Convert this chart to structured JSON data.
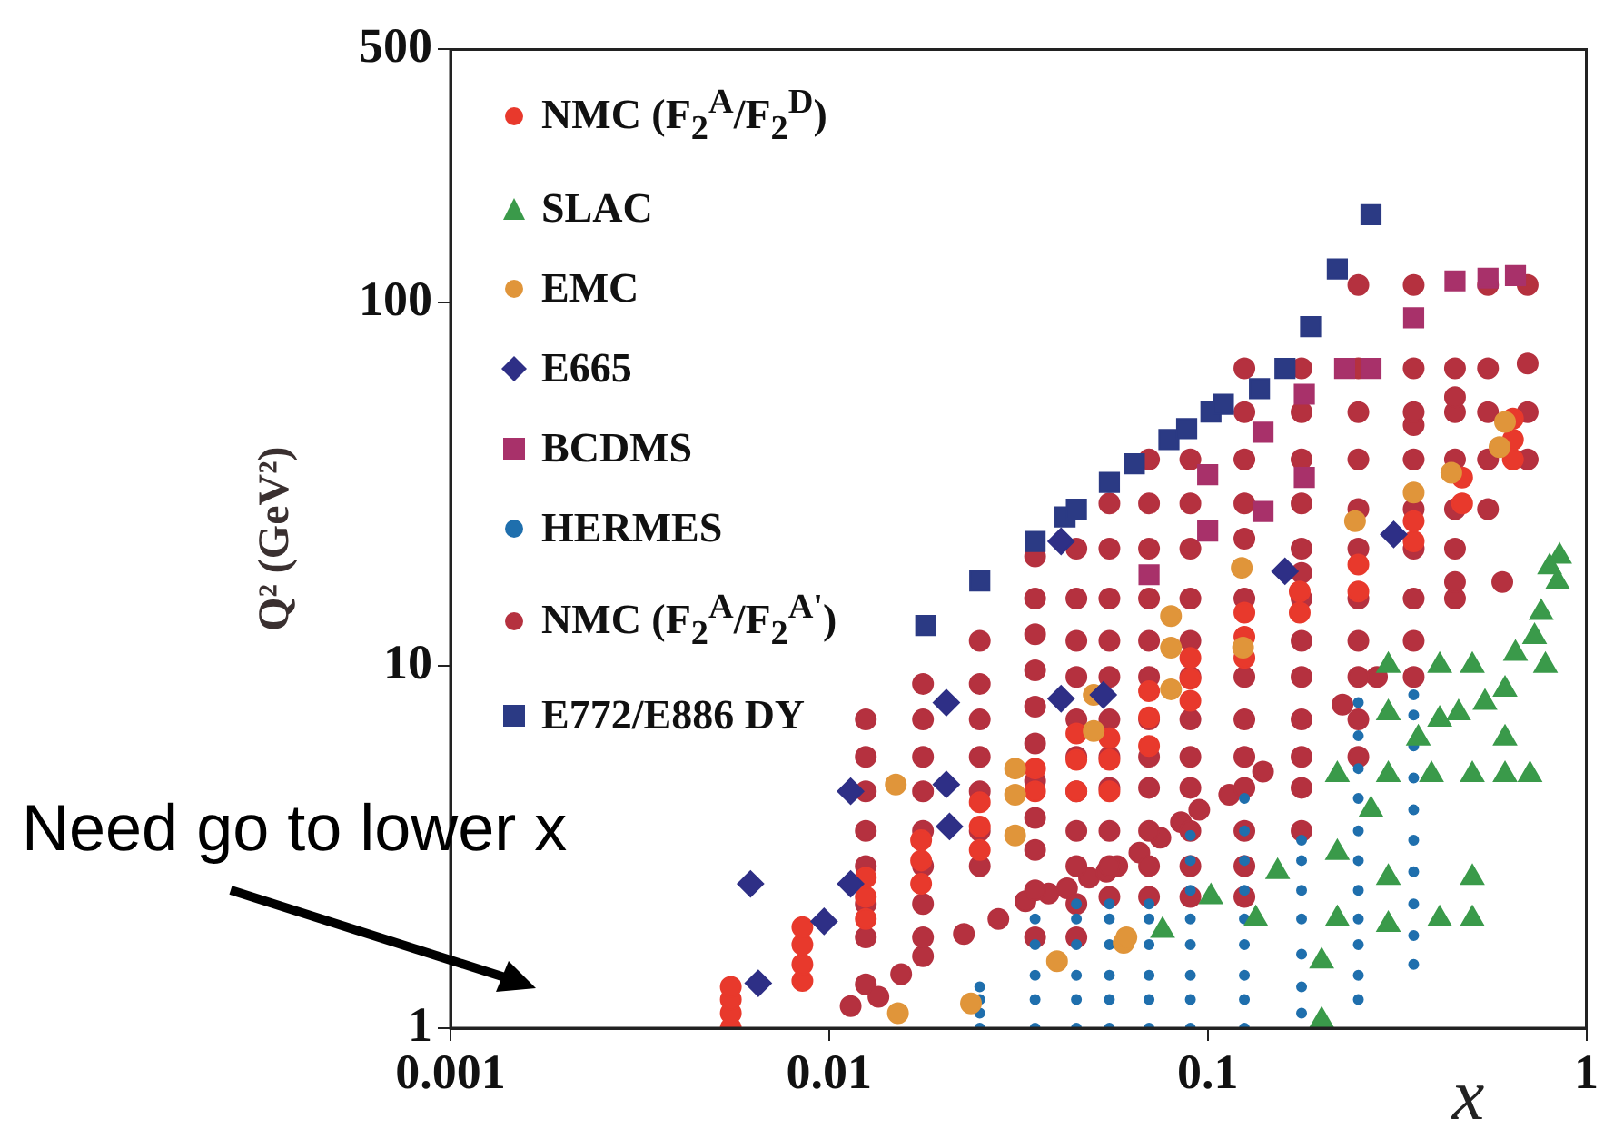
{
  "chart_data": {
    "type": "scatter",
    "ylabel": "Q² (GeV²)",
    "xlabel": "x",
    "log": "xy",
    "legend": "top left",
    "xlim": [
      0.001,
      1
    ],
    "xticks": [
      0.001,
      0.01,
      0.1,
      1
    ],
    "ylim": [
      1,
      500
    ],
    "yticks": [
      1,
      10,
      100,
      500
    ],
    "annotations": [
      "Need go to lower x"
    ],
    "series": [
      {
        "name": "NMC (F$_{2}$$^{A}$/F$_{2}$$^{D}$)",
        "color": "#e8392c",
        "marker": "circle",
        "x": [
          0.0055,
          0.0055,
          0.0055,
          0.0055,
          0.0085,
          0.0085,
          0.0085,
          0.0085,
          0.0125,
          0.0125,
          0.0125,
          0.0175,
          0.0175,
          0.0175,
          0.025,
          0.025,
          0.025,
          0.035,
          0.035,
          0.045,
          0.045,
          0.045,
          0.055,
          0.055,
          0.055,
          0.07,
          0.07,
          0.07,
          0.09,
          0.09,
          0.09,
          0.125,
          0.125,
          0.125,
          0.175,
          0.175,
          0.25,
          0.25,
          0.35,
          0.35,
          0.47,
          0.47,
          0.64,
          0.64,
          0.64
        ],
        "values": [
          1.0,
          1.1,
          1.2,
          1.3,
          1.35,
          1.5,
          1.7,
          1.9,
          2.0,
          2.3,
          2.6,
          2.5,
          2.9,
          3.3,
          3.1,
          3.6,
          4.2,
          4.5,
          5.2,
          4.5,
          5.5,
          6.5,
          4.5,
          5.5,
          6.3,
          6,
          7.2,
          8.5,
          8,
          9.2,
          10.5,
          10.5,
          12,
          14,
          14,
          16,
          16,
          19,
          22,
          25,
          28,
          33,
          37,
          42,
          48
        ]
      },
      {
        "name": "SLAC",
        "color": "#3a9a4a",
        "marker": "triangle",
        "x": [
          0.076,
          0.102,
          0.134,
          0.153,
          0.2,
          0.2,
          0.22,
          0.22,
          0.22,
          0.27,
          0.3,
          0.3,
          0.3,
          0.3,
          0.3,
          0.36,
          0.39,
          0.41,
          0.41,
          0.41,
          0.46,
          0.5,
          0.5,
          0.5,
          0.5,
          0.54,
          0.61,
          0.61,
          0.61,
          0.65,
          0.71,
          0.73,
          0.76,
          0.78,
          0.8,
          0.84,
          0.85
        ],
        "values": [
          1.86,
          2.3,
          2.0,
          2.7,
          1.53,
          1.05,
          3.05,
          2.0,
          5.0,
          4.0,
          1.93,
          2.6,
          5.0,
          7.4,
          10,
          6.3,
          5.0,
          2.0,
          7.1,
          10,
          7.4,
          2.6,
          2.0,
          5.0,
          10,
          7.9,
          5.0,
          8.6,
          6.3,
          10.8,
          5.0,
          12,
          14,
          10,
          18.7,
          17,
          20
        ]
      },
      {
        "name": "EMC",
        "color": "#e0953a",
        "marker": "circle",
        "x": [
          0.015,
          0.0152,
          0.0237,
          0.031,
          0.031,
          0.031,
          0.04,
          0.05,
          0.05,
          0.06,
          0.061,
          0.08,
          0.08,
          0.08,
          0.123,
          0.124,
          0.245,
          0.35,
          0.44,
          0.59,
          0.61
        ],
        "values": [
          4.7,
          1.1,
          1.17,
          5.2,
          4.4,
          3.4,
          1.53,
          8.3,
          6.6,
          1.72,
          1.78,
          13.7,
          11.2,
          8.6,
          18.6,
          11.2,
          25,
          30,
          34,
          40,
          47
        ]
      },
      {
        "name": "E665",
        "color": "#2e2f86",
        "marker": "diamond",
        "x": [
          0.0062,
          0.0065,
          0.0097,
          0.0114,
          0.0114,
          0.0204,
          0.0204,
          0.0208,
          0.041,
          0.041,
          0.053,
          0.16,
          0.31
        ],
        "values": [
          2.5,
          1.33,
          1.97,
          4.5,
          2.5,
          7.9,
          4.7,
          3.6,
          8.1,
          22,
          8.3,
          18.2,
          23
        ]
      },
      {
        "name": "BCDMS",
        "color": "#a8316a",
        "marker": "square",
        "x": [
          0.07,
          0.1,
          0.1,
          0.14,
          0.14,
          0.18,
          0.18,
          0.23,
          0.27,
          0.35,
          0.45,
          0.55,
          0.65
        ],
        "values": [
          17.8,
          33.6,
          23.5,
          44,
          26.6,
          56,
          33,
          66,
          66,
          91,
          115,
          117,
          119
        ]
      },
      {
        "name": "HERMES",
        "color": "#1f6fad",
        "marker": "circle",
        "x": [
          0.025,
          0.025,
          0.025,
          0.025,
          0.035,
          0.035,
          0.035,
          0.035,
          0.035,
          0.045,
          0.045,
          0.045,
          0.045,
          0.045,
          0.045,
          0.055,
          0.055,
          0.055,
          0.055,
          0.055,
          0.055,
          0.07,
          0.07,
          0.07,
          0.07,
          0.07,
          0.07,
          0.09,
          0.09,
          0.09,
          0.09,
          0.09,
          0.09,
          0.09,
          0.09,
          0.125,
          0.125,
          0.125,
          0.125,
          0.125,
          0.125,
          0.125,
          0.125,
          0.125,
          0.177,
          0.177,
          0.177,
          0.177,
          0.177,
          0.177,
          0.177,
          0.25,
          0.25,
          0.25,
          0.25,
          0.25,
          0.25,
          0.25,
          0.25,
          0.25,
          0.25,
          0.25,
          0.35,
          0.35,
          0.35,
          0.35,
          0.35,
          0.35,
          0.35,
          0.35,
          0.35,
          0.35
        ],
        "values": [
          1.0,
          1.1,
          1.2,
          1.3,
          1.0,
          1.2,
          1.4,
          1.7,
          2.0,
          1.0,
          1.2,
          1.4,
          1.7,
          2.0,
          2.2,
          1.0,
          1.2,
          1.4,
          1.7,
          2.0,
          2.2,
          1.0,
          1.2,
          1.4,
          1.7,
          2.0,
          2.2,
          1.0,
          1.2,
          1.4,
          1.7,
          2.0,
          2.4,
          2.9,
          3.4,
          1.0,
          1.2,
          1.4,
          1.7,
          2.0,
          2.4,
          2.9,
          3.5,
          4.3,
          1.1,
          1.3,
          1.6,
          2.0,
          2.4,
          2.9,
          3.3,
          1.2,
          1.4,
          1.7,
          2.0,
          2.4,
          2.9,
          3.5,
          4.3,
          5.2,
          6.4,
          7.9,
          1.5,
          1.8,
          2.2,
          2.7,
          3.3,
          4.0,
          4.9,
          6.0,
          7.3,
          8.3
        ]
      },
      {
        "name": "NMC (F$_{2}$$^{A}$/F$_{2}$$^{A'}$)",
        "color": "#b5313f",
        "marker": "circle",
        "x": [
          0.0114,
          0.0125,
          0.0125,
          0.0125,
          0.0125,
          0.0125,
          0.0125,
          0.0125,
          0.0125,
          0.0135,
          0.0155,
          0.0177,
          0.0177,
          0.0177,
          0.0177,
          0.0177,
          0.0177,
          0.0177,
          0.0177,
          0.0177,
          0.025,
          0.025,
          0.025,
          0.025,
          0.025,
          0.025,
          0.025,
          0.0227,
          0.028,
          0.033,
          0.038,
          0.0425,
          0.0486,
          0.054,
          0.0577,
          0.066,
          0.075,
          0.085,
          0.095,
          0.114,
          0.14,
          0.227,
          0.28,
          0.035,
          0.035,
          0.035,
          0.035,
          0.035,
          0.035,
          0.035,
          0.035,
          0.035,
          0.035,
          0.035,
          0.045,
          0.045,
          0.045,
          0.045,
          0.045,
          0.045,
          0.045,
          0.045,
          0.045,
          0.045,
          0.045,
          0.055,
          0.055,
          0.055,
          0.055,
          0.055,
          0.055,
          0.055,
          0.055,
          0.055,
          0.055,
          0.055,
          0.07,
          0.07,
          0.07,
          0.07,
          0.07,
          0.07,
          0.07,
          0.07,
          0.07,
          0.07,
          0.07,
          0.07,
          0.09,
          0.09,
          0.09,
          0.09,
          0.09,
          0.09,
          0.09,
          0.09,
          0.09,
          0.09,
          0.09,
          0.09,
          0.125,
          0.125,
          0.125,
          0.125,
          0.125,
          0.125,
          0.125,
          0.125,
          0.125,
          0.125,
          0.125,
          0.125,
          0.125,
          0.177,
          0.177,
          0.177,
          0.177,
          0.177,
          0.177,
          0.177,
          0.177,
          0.177,
          0.177,
          0.177,
          0.177,
          0.177,
          0.25,
          0.25,
          0.25,
          0.25,
          0.25,
          0.25,
          0.25,
          0.25,
          0.25,
          0.25,
          0.25,
          0.35,
          0.35,
          0.35,
          0.35,
          0.35,
          0.35,
          0.35,
          0.35,
          0.35,
          0.35,
          0.45,
          0.45,
          0.45,
          0.45,
          0.45,
          0.45,
          0.45,
          0.45,
          0.6,
          0.55,
          0.55,
          0.55,
          0.55,
          0.55,
          0.7,
          0.7,
          0.7,
          0.7
        ],
        "values": [
          1.15,
          1.32,
          1.78,
          2.2,
          2.8,
          3.5,
          4.5,
          5.6,
          7.1,
          1.22,
          1.41,
          1.58,
          1.78,
          2.2,
          2.8,
          3.5,
          4.5,
          5.6,
          7.1,
          8.9,
          2.8,
          3.5,
          4.5,
          5.6,
          7.1,
          8.9,
          11.7,
          1.82,
          2.0,
          2.24,
          2.35,
          2.43,
          2.6,
          2.7,
          2.8,
          3.05,
          3.35,
          3.7,
          4.0,
          4.4,
          5.1,
          7.8,
          9.3,
          1.78,
          2.4,
          3.1,
          3.8,
          4.8,
          6.1,
          7.7,
          9.7,
          12.2,
          15.3,
          20,
          1.78,
          2.2,
          2.8,
          3.5,
          4.5,
          5.6,
          7.1,
          9.3,
          11.7,
          15.3,
          21,
          2.3,
          2.8,
          3.5,
          4.6,
          5.6,
          7.1,
          9.3,
          11.7,
          15.3,
          21,
          28,
          2.3,
          2.8,
          3.5,
          4.6,
          5.6,
          7.1,
          9.3,
          11.7,
          15.3,
          21,
          28,
          37,
          2.3,
          2.8,
          3.5,
          4.6,
          5.6,
          7.1,
          9.3,
          11.7,
          15.3,
          21,
          28,
          37,
          2.3,
          2.8,
          3.5,
          4.6,
          5.6,
          7.1,
          9.3,
          15.3,
          22.4,
          28,
          37,
          50,
          66,
          3.5,
          4.6,
          5.6,
          7.1,
          9.3,
          11.7,
          15.3,
          18,
          21,
          28,
          37,
          50,
          66,
          5.6,
          7.1,
          9.3,
          11.7,
          15.3,
          21,
          27,
          37,
          50,
          66,
          112,
          9.3,
          11.7,
          15.3,
          21,
          27,
          37,
          46,
          50,
          66,
          112,
          15.3,
          17,
          21,
          27,
          37,
          50,
          55,
          66,
          17,
          27,
          37,
          50,
          66,
          112,
          37,
          50,
          68,
          112
        ]
      },
      {
        "name": "E772/E886 DY",
        "color": "#2b3a84",
        "marker": "square",
        "x": [
          0.018,
          0.025,
          0.035,
          0.042,
          0.045,
          0.055,
          0.064,
          0.079,
          0.088,
          0.102,
          0.11,
          0.137,
          0.16,
          0.187,
          0.22,
          0.27
        ],
        "values": [
          12.9,
          17.1,
          22,
          25.7,
          27,
          32,
          36,
          42,
          45,
          50,
          52.5,
          58,
          66,
          86,
          124,
          175
        ]
      }
    ]
  }
}
